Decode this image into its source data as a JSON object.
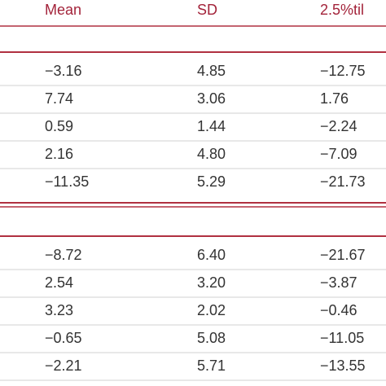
{
  "header": [
    "Mean",
    "SD",
    "2.5%til"
  ],
  "sections": [
    {
      "rows": [
        [
          "−3.16",
          "4.85",
          "−12.75"
        ],
        [
          "7.74",
          "3.06",
          "1.76"
        ],
        [
          "0.59",
          "1.44",
          "−2.24"
        ],
        [
          "2.16",
          "4.80",
          "−7.09"
        ],
        [
          "−11.35",
          "5.29",
          "−21.73"
        ]
      ]
    },
    {
      "rows": [
        [
          "−8.72",
          "6.40",
          "−21.67"
        ],
        [
          "2.54",
          "3.20",
          "−3.87"
        ],
        [
          "3.23",
          "2.02",
          "−0.46"
        ],
        [
          "−0.65",
          "5.08",
          "−11.05"
        ],
        [
          "−2.21",
          "5.71",
          "−13.55"
        ]
      ]
    }
  ]
}
